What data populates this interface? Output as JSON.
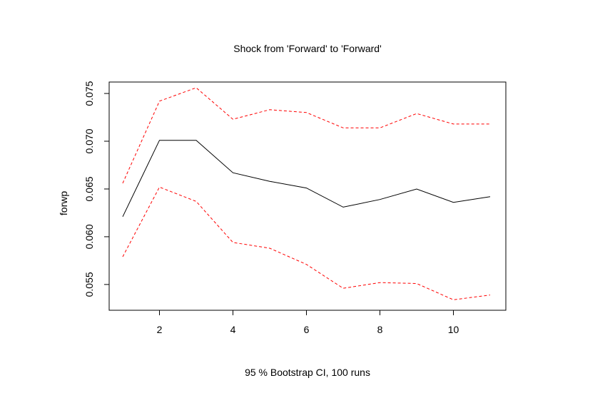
{
  "chart_data": {
    "type": "line",
    "title": "Shock from 'Forward' to 'Forward'",
    "xlabel": "95 % Bootstrap CI,  100 runs",
    "ylabel": "forwp",
    "xlim": [
      1,
      11
    ],
    "ylim": [
      0.0523,
      0.0762
    ],
    "x_ticks": [
      2,
      4,
      6,
      8,
      10
    ],
    "y_ticks": [
      0.055,
      0.06,
      0.065,
      0.07,
      0.075
    ],
    "y_tick_labels": [
      "0.055",
      "0.060",
      "0.065",
      "0.070",
      "0.075"
    ],
    "grid": false,
    "legend": "none",
    "x": [
      1,
      2,
      3,
      4,
      5,
      6,
      7,
      8,
      9,
      10,
      11
    ],
    "series": [
      {
        "role": "estimate",
        "color": "#000000",
        "style": "solid",
        "values": [
          0.0621,
          0.0701,
          0.0701,
          0.0667,
          0.0658,
          0.0651,
          0.0631,
          0.0639,
          0.065,
          0.0636,
          0.0642
        ]
      },
      {
        "role": "upper",
        "color": "#ff0000",
        "style": "dashed",
        "values": [
          0.0656,
          0.0742,
          0.0756,
          0.0723,
          0.0733,
          0.073,
          0.0714,
          0.0714,
          0.0729,
          0.0718,
          0.0718
        ]
      },
      {
        "role": "lower",
        "color": "#ff0000",
        "style": "dashed",
        "values": [
          0.0579,
          0.0652,
          0.0637,
          0.0594,
          0.0588,
          0.0571,
          0.0546,
          0.0552,
          0.0551,
          0.0534,
          0.0539
        ]
      }
    ]
  }
}
